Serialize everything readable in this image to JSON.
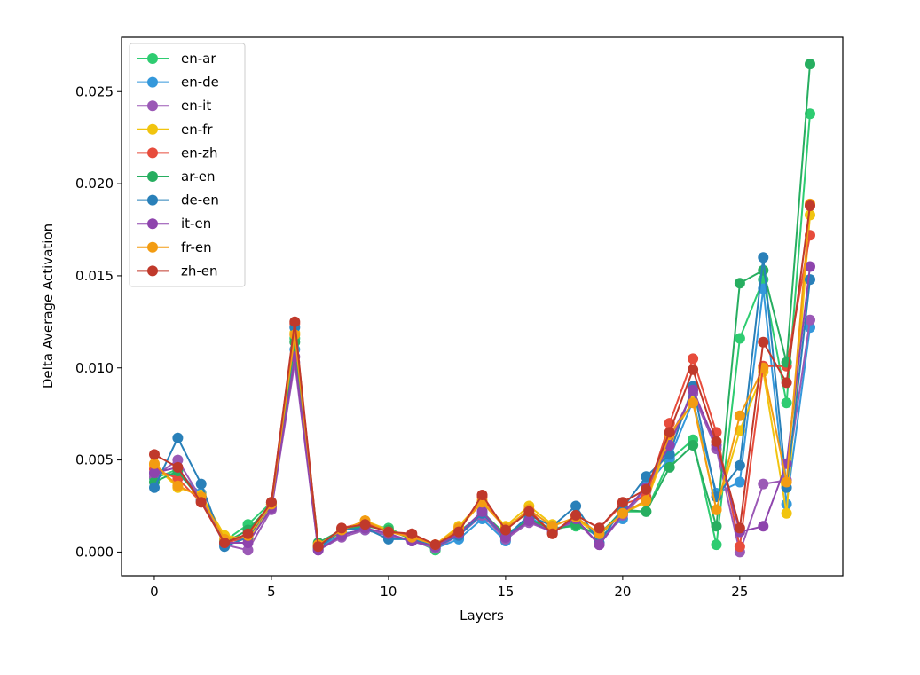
{
  "chart_data": {
    "type": "line",
    "xlabel": "Layers",
    "ylabel": "Delta Average Activation",
    "xlim": [
      -1.4,
      29.4
    ],
    "ylim": [
      -0.00128,
      0.02795
    ],
    "xticks": [
      0,
      5,
      10,
      15,
      20,
      25
    ],
    "yticks": [
      0.0,
      0.005,
      0.01,
      0.015,
      0.02,
      0.025
    ],
    "ytick_labels": [
      "0.000",
      "0.005",
      "0.010",
      "0.015",
      "0.020",
      "0.025"
    ],
    "grid": false,
    "legend_position": "top-left",
    "x": [
      0,
      1,
      2,
      3,
      4,
      5,
      6,
      7,
      8,
      9,
      10,
      11,
      12,
      13,
      14,
      15,
      16,
      17,
      18,
      19,
      20,
      21,
      22,
      23,
      24,
      25,
      26,
      27,
      28
    ],
    "series": [
      {
        "name": "en-ar",
        "color": "#2ecc71",
        "values": [
          0.004,
          0.0045,
          0.003,
          0.0006,
          0.0015,
          0.0027,
          0.0116,
          0.0004,
          0.0012,
          0.0015,
          0.0013,
          0.0007,
          0.0001,
          0.0011,
          0.0021,
          0.001,
          0.0017,
          0.0013,
          0.0014,
          0.001,
          0.0022,
          0.0022,
          0.005,
          0.0061,
          0.0004,
          0.0116,
          0.0148,
          0.0081,
          0.0238
        ]
      },
      {
        "name": "en-de",
        "color": "#3498db",
        "values": [
          0.0043,
          0.0042,
          0.0032,
          0.0004,
          0.001,
          0.0025,
          0.011,
          0.0002,
          0.001,
          0.0012,
          0.0009,
          0.0006,
          0.0002,
          0.0007,
          0.0018,
          0.0006,
          0.0019,
          0.0012,
          0.0016,
          0.0008,
          0.0018,
          0.0036,
          0.0051,
          0.0082,
          0.0032,
          0.0038,
          0.0143,
          0.0026,
          0.0122
        ]
      },
      {
        "name": "en-it",
        "color": "#9b59b6",
        "values": [
          0.0041,
          0.005,
          0.0029,
          0.0004,
          0.0001,
          0.0023,
          0.0103,
          0.0001,
          0.0008,
          0.0012,
          0.0009,
          0.0006,
          0.0002,
          0.0009,
          0.002,
          0.0007,
          0.0016,
          0.0011,
          0.0017,
          0.0004,
          0.002,
          0.0033,
          0.0062,
          0.0086,
          0.0056,
          0.0,
          0.0037,
          0.0039,
          0.0126
        ]
      },
      {
        "name": "en-fr",
        "color": "#f1c40f",
        "values": [
          0.0047,
          0.0035,
          0.0031,
          0.0009,
          0.0007,
          0.0025,
          0.0119,
          0.0003,
          0.0011,
          0.0017,
          0.0012,
          0.0008,
          0.0004,
          0.0014,
          0.0028,
          0.0014,
          0.0025,
          0.0015,
          0.0018,
          0.0009,
          0.0021,
          0.0027,
          0.0061,
          0.0082,
          0.0023,
          0.0066,
          0.0098,
          0.0021,
          0.0183
        ]
      },
      {
        "name": "en-zh",
        "color": "#e74c3c",
        "values": [
          0.0045,
          0.004,
          0.0027,
          0.0005,
          0.0008,
          0.0027,
          0.0124,
          0.0003,
          0.0013,
          0.0016,
          0.0011,
          0.0009,
          0.0004,
          0.0012,
          0.003,
          0.0012,
          0.0023,
          0.001,
          0.002,
          0.0013,
          0.0026,
          0.003,
          0.007,
          0.0105,
          0.0065,
          0.0003,
          0.0101,
          0.0101,
          0.0172
        ]
      },
      {
        "name": "ar-en",
        "color": "#27ae60",
        "values": [
          0.0038,
          0.0044,
          0.0028,
          0.0005,
          0.0012,
          0.0026,
          0.0114,
          0.0005,
          0.0012,
          0.0014,
          0.0012,
          0.0007,
          0.0003,
          0.001,
          0.0022,
          0.0009,
          0.0018,
          0.0012,
          0.0015,
          0.0009,
          0.0023,
          0.0022,
          0.0046,
          0.0058,
          0.0014,
          0.0146,
          0.0153,
          0.0103,
          0.0265
        ]
      },
      {
        "name": "de-en",
        "color": "#2980b9",
        "values": [
          0.0035,
          0.0062,
          0.0037,
          0.0003,
          0.0008,
          0.0026,
          0.0122,
          0.0002,
          0.0012,
          0.0013,
          0.0007,
          0.0007,
          0.0003,
          0.0009,
          0.0021,
          0.0008,
          0.002,
          0.0014,
          0.0025,
          0.0005,
          0.0024,
          0.0041,
          0.0053,
          0.009,
          0.003,
          0.0047,
          0.016,
          0.0035,
          0.0148
        ]
      },
      {
        "name": "it-en",
        "color": "#8e44ad",
        "values": [
          0.0043,
          0.0046,
          0.0028,
          0.0005,
          0.0005,
          0.0024,
          0.0106,
          0.0001,
          0.0009,
          0.0013,
          0.001,
          0.0006,
          0.0003,
          0.001,
          0.0022,
          0.0008,
          0.0017,
          0.0011,
          0.0018,
          0.0004,
          0.0021,
          0.0035,
          0.0058,
          0.0088,
          0.0058,
          0.0011,
          0.0014,
          0.0048,
          0.0155
        ]
      },
      {
        "name": "fr-en",
        "color": "#f39c12",
        "values": [
          0.0048,
          0.0036,
          0.003,
          0.0007,
          0.0009,
          0.0026,
          0.0118,
          0.0004,
          0.0012,
          0.0017,
          0.0011,
          0.0008,
          0.0004,
          0.0013,
          0.0027,
          0.0013,
          0.0023,
          0.0014,
          0.0019,
          0.001,
          0.0021,
          0.0028,
          0.0064,
          0.0081,
          0.0023,
          0.0074,
          0.01,
          0.0038,
          0.0189
        ]
      },
      {
        "name": "zh-en",
        "color": "#c0392b",
        "values": [
          0.0053,
          0.0046,
          0.0027,
          0.0005,
          0.001,
          0.0027,
          0.0125,
          0.0003,
          0.0013,
          0.0015,
          0.0011,
          0.001,
          0.0004,
          0.0011,
          0.0031,
          0.0012,
          0.0022,
          0.001,
          0.002,
          0.0013,
          0.0027,
          0.0034,
          0.0065,
          0.0099,
          0.006,
          0.0013,
          0.0114,
          0.0092,
          0.0188
        ]
      }
    ]
  }
}
